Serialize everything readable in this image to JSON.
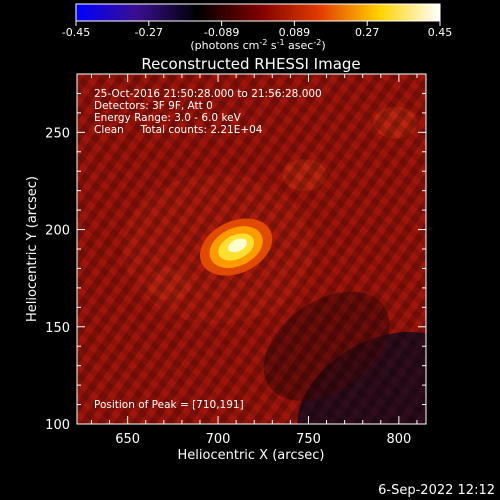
{
  "chart_data": {
    "type": "heatmap",
    "title": "Reconstructed RHESSI Image",
    "xlabel": "Heliocentric X (arcsec)",
    "ylabel": "Heliocentric Y (arcsec)",
    "xlim": [
      622,
      815
    ],
    "ylim": [
      100,
      280
    ],
    "x_ticks": [
      650,
      700,
      750,
      800
    ],
    "y_ticks": [
      100,
      150,
      200,
      250
    ],
    "colorbar": {
      "ticks": [
        "-0.45",
        "-0.27",
        "-0.089",
        "0.089",
        "0.27",
        "0.45"
      ],
      "range": [
        -0.45,
        0.45
      ],
      "units_label": "(photons cm",
      "units_exp1": "-2",
      "units_mid": " s",
      "units_exp2": "-1",
      "units_end": " asec",
      "units_exp3": "-2",
      "units_close": ")",
      "colormap": [
        "#0000ff",
        "#3a0f8f",
        "#000000",
        "#7a0000",
        "#e23a00",
        "#ffd200",
        "#ffffff"
      ]
    },
    "annotations": [
      "25-Oct-2016 21:50:28.000 to 21:56:28.000",
      "Detectors: 3F 9F, Att 0",
      "Energy Range: 3.0 - 6.0 keV",
      "Clean     Total counts: 2.21E+04"
    ],
    "peak_label": "Position of Peak = [710,191]",
    "peak": {
      "x": 710,
      "y": 191,
      "value": 0.45
    },
    "sources": [
      {
        "x": 710,
        "y": 191,
        "value": 0.45
      },
      {
        "x": 673,
        "y": 172,
        "value": 0.12
      },
      {
        "x": 748,
        "y": 228,
        "value": 0.09
      },
      {
        "x": 798,
        "y": 255,
        "value": 0.08
      }
    ]
  },
  "footer": {
    "date": "6-Sep-2022 12:12"
  }
}
